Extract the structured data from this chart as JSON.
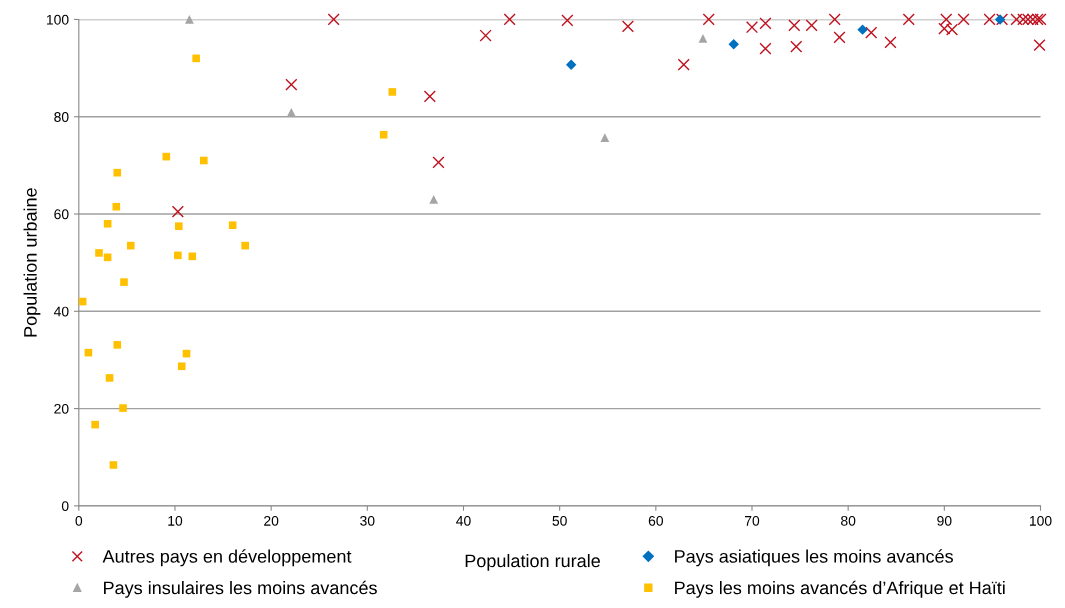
{
  "chart_data": {
    "type": "scatter",
    "xlabel": "Population rurale",
    "ylabel": "Population urbaine",
    "xlim": [
      0,
      100
    ],
    "ylim": [
      0,
      100
    ],
    "xticks": [
      0,
      10,
      20,
      30,
      40,
      50,
      60,
      70,
      80,
      90,
      100
    ],
    "yticks": [
      0,
      20,
      40,
      60,
      80,
      100
    ],
    "grid": "y",
    "legend": "bottom",
    "series": [
      {
        "name": "Autres pays en développement",
        "color": "#c0111f",
        "marker": "cross",
        "x": [
          10.3,
          22.1,
          26.5,
          36.5,
          37.4,
          42.3,
          44.8,
          50.8,
          57.1,
          62.9,
          65.5,
          70.0,
          71.4,
          71.4,
          74.4,
          74.6,
          76.2,
          78.6,
          79.1,
          82.4,
          84.4,
          86.3,
          90.2,
          90.0,
          90.8,
          92.0,
          94.7,
          96.0,
          97.5,
          98.2,
          98.7,
          99.2,
          99.7,
          100,
          99.9
        ],
        "values": [
          60.5,
          86.6,
          100,
          84.2,
          70.6,
          96.7,
          100,
          99.8,
          98.6,
          90.7,
          100,
          98.4,
          99.2,
          94.0,
          98.8,
          94.4,
          98.8,
          100,
          96.3,
          97.3,
          95.3,
          100,
          100,
          98.1,
          97.9,
          100,
          100,
          100,
          100,
          100,
          100,
          100,
          100,
          100,
          94.7
        ]
      },
      {
        "name": "Pays asiatiques les moins avancés",
        "color": "#0070c0",
        "marker": "diamond",
        "x": [
          51.2,
          68.1,
          81.5,
          95.8
        ],
        "values": [
          90.7,
          94.9,
          97.9,
          100
        ]
      },
      {
        "name": "Pays insulaires les moins avancés",
        "color": "#a5a5a5",
        "marker": "triangle",
        "x": [
          11.5,
          22.1,
          36.9,
          54.7,
          64.9
        ],
        "values": [
          100,
          80.9,
          63.0,
          75.7,
          96.1
        ]
      },
      {
        "name": "Pays les moins avancés d’Afrique et Haïti",
        "color": "#ffc000",
        "marker": "square",
        "x": [
          12.2,
          32.6,
          31.7,
          9.1,
          13.0,
          4.0,
          3.9,
          3.0,
          10.4,
          16.0,
          5.4,
          17.3,
          2.1,
          3.0,
          10.3,
          11.8,
          4.7,
          0.4,
          1.0,
          4.0,
          11.2,
          10.7,
          3.2,
          4.6,
          1.7,
          3.6
        ],
        "values": [
          92.0,
          85.1,
          76.3,
          71.8,
          71.0,
          68.5,
          61.5,
          58.0,
          57.5,
          57.7,
          53.5,
          53.5,
          52.0,
          51.1,
          51.5,
          51.3,
          46.0,
          42.0,
          31.5,
          33.1,
          31.3,
          28.7,
          26.3,
          20.1,
          16.7,
          8.4
        ]
      }
    ]
  }
}
